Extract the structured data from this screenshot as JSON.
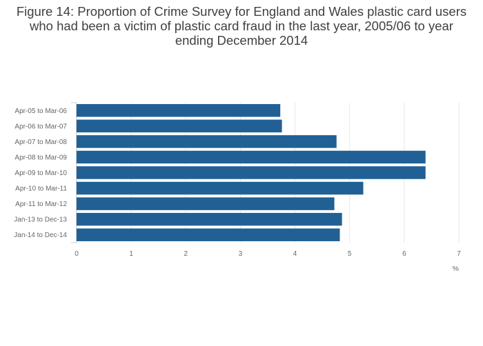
{
  "chart_data": {
    "type": "bar",
    "orientation": "horizontal",
    "title": "Figure 14: Proportion of Crime Survey for England and Wales plastic card users who had been a victim of plastic card fraud in the last year, 2005/06 to year ending December 2014",
    "xlabel": "%",
    "ylabel": "",
    "categories": [
      "Apr-05 to Mar-06",
      "Apr-06 to Mar-07",
      "Apr-07 to Mar-08",
      "Apr-08 to Mar-09",
      "Apr-09 to Mar-10",
      "Apr-10 to Mar-11",
      "Apr-11 to Mar-12",
      "Jan-13 to Dec-13",
      "Jan-14 to Dec-14"
    ],
    "values": [
      3.73,
      3.76,
      4.76,
      6.39,
      6.39,
      5.25,
      4.72,
      4.86,
      4.82
    ],
    "xlim": [
      0,
      7
    ],
    "xticks": [
      "0",
      "1",
      "2",
      "3",
      "4",
      "5",
      "6",
      "7"
    ],
    "grid": true,
    "bar_color": "#206095",
    "grid_color": "#e6e6e6"
  }
}
